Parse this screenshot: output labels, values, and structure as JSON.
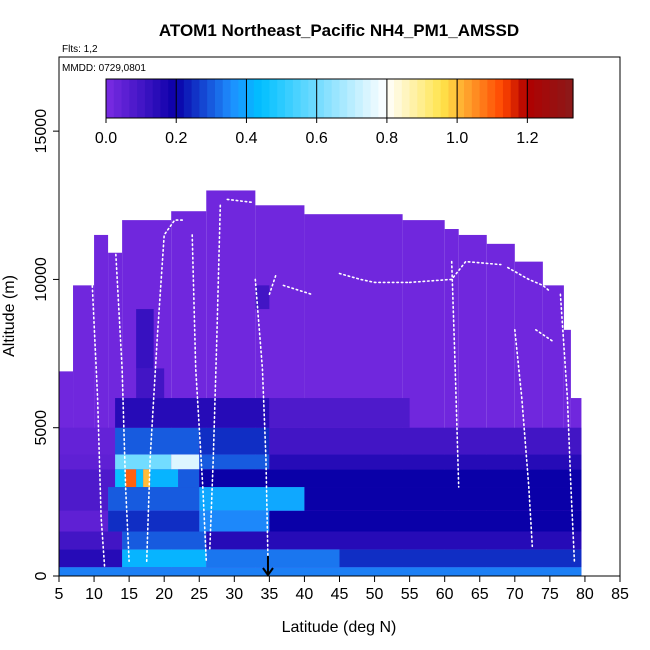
{
  "chart_data": {
    "type": "heatmap",
    "title": "ATOM1 Northeast_Pacific NH4_PM1_AMSSD",
    "flights_label": "Flts: 1,2",
    "date_label": "MMDD: 0729,0801",
    "xlabel": "Latitude (deg N)",
    "ylabel": "Altitude (m)",
    "xlim": [
      5,
      85
    ],
    "ylim": [
      0,
      17500
    ],
    "xticks": [
      "5",
      "10",
      "15",
      "20",
      "25",
      "30",
      "35",
      "40",
      "45",
      "50",
      "55",
      "60",
      "65",
      "70",
      "75",
      "80",
      "85"
    ],
    "yticks": [
      "0",
      "5000",
      "10000",
      "15000"
    ],
    "colorbar": {
      "range": [
        0,
        1.33
      ],
      "ticks": [
        "0.0",
        "0.2",
        "0.4",
        "0.6",
        "0.8",
        "1.0",
        "1.2"
      ],
      "colors": [
        "#7b2be3",
        "#0a00a8",
        "#1e90ff",
        "#00bfff",
        "#ffffff",
        "#ffe34a",
        "#ff4500",
        "#b00000",
        "#8b1a1a"
      ]
    },
    "arrow_marker": {
      "latitude": 34.8,
      "altitude": 0
    },
    "column_tops": [
      {
        "lat_from": 5,
        "lat_to": 7,
        "alt": 6900
      },
      {
        "lat_from": 7,
        "lat_to": 10,
        "alt": 9800
      },
      {
        "lat_from": 10,
        "lat_to": 12,
        "alt": 11500
      },
      {
        "lat_from": 12,
        "lat_to": 14,
        "alt": 10900
      },
      {
        "lat_from": 14,
        "lat_to": 21,
        "alt": 12000
      },
      {
        "lat_from": 21,
        "lat_to": 26,
        "alt": 12300
      },
      {
        "lat_from": 26,
        "lat_to": 33,
        "alt": 13000
      },
      {
        "lat_from": 33,
        "lat_to": 40,
        "alt": 12500
      },
      {
        "lat_from": 40,
        "lat_to": 54,
        "alt": 12200
      },
      {
        "lat_from": 54,
        "lat_to": 60,
        "alt": 12000
      },
      {
        "lat_from": 60,
        "lat_to": 62,
        "alt": 11700
      },
      {
        "lat_from": 62,
        "lat_to": 66,
        "alt": 11500
      },
      {
        "lat_from": 66,
        "lat_to": 70,
        "alt": 11200
      },
      {
        "lat_from": 70,
        "lat_to": 74,
        "alt": 10600
      },
      {
        "lat_from": 74,
        "lat_to": 77,
        "alt": 9800
      },
      {
        "lat_from": 77,
        "lat_to": 78,
        "alt": 8300
      },
      {
        "lat_from": 78,
        "lat_to": 79.5,
        "alt": 6000
      }
    ],
    "bands": [
      {
        "alt_from": 0,
        "alt_to": 300,
        "lat_from": 5,
        "lat_to": 79.5,
        "value": 0.34
      },
      {
        "alt_from": 300,
        "alt_to": 900,
        "lat_from": 5,
        "lat_to": 14,
        "value": 0.15
      },
      {
        "alt_from": 300,
        "alt_to": 900,
        "lat_from": 14,
        "lat_to": 26,
        "value": 0.42
      },
      {
        "alt_from": 300,
        "alt_to": 900,
        "lat_from": 26,
        "lat_to": 45,
        "value": 0.33
      },
      {
        "alt_from": 300,
        "alt_to": 900,
        "lat_from": 45,
        "lat_to": 79.5,
        "value": 0.25
      },
      {
        "alt_from": 900,
        "alt_to": 1500,
        "lat_from": 5,
        "lat_to": 14,
        "value": 0.1
      },
      {
        "alt_from": 900,
        "alt_to": 1500,
        "lat_from": 14,
        "lat_to": 26,
        "value": 0.3
      },
      {
        "alt_from": 900,
        "alt_to": 1500,
        "lat_from": 26,
        "lat_to": 79.5,
        "value": 0.15
      },
      {
        "alt_from": 1500,
        "alt_to": 2200,
        "lat_from": 5,
        "lat_to": 12,
        "value": 0.05
      },
      {
        "alt_from": 1500,
        "alt_to": 2200,
        "lat_from": 12,
        "lat_to": 25,
        "value": 0.25
      },
      {
        "alt_from": 1500,
        "alt_to": 2200,
        "lat_from": 25,
        "lat_to": 35,
        "value": 0.35
      },
      {
        "alt_from": 1500,
        "alt_to": 2200,
        "lat_from": 35,
        "lat_to": 79.5,
        "value": 0.2
      },
      {
        "alt_from": 2200,
        "alt_to": 3000,
        "lat_from": 5,
        "lat_to": 12,
        "value": 0.08
      },
      {
        "alt_from": 2200,
        "alt_to": 3000,
        "lat_from": 12,
        "lat_to": 25,
        "value": 0.3
      },
      {
        "alt_from": 2200,
        "alt_to": 3000,
        "lat_from": 25,
        "lat_to": 40,
        "value": 0.4
      },
      {
        "alt_from": 2200,
        "alt_to": 3000,
        "lat_from": 40,
        "lat_to": 79.5,
        "value": 0.2
      },
      {
        "alt_from": 3000,
        "alt_to": 3600,
        "lat_from": 5,
        "lat_to": 13,
        "value": 0.08
      },
      {
        "alt_from": 3000,
        "alt_to": 3600,
        "lat_from": 13,
        "lat_to": 14.5,
        "value": 0.45
      },
      {
        "alt_from": 3000,
        "alt_to": 3600,
        "lat_from": 14.5,
        "lat_to": 16,
        "value": 1.1
      },
      {
        "alt_from": 3000,
        "alt_to": 3600,
        "lat_from": 16,
        "lat_to": 17,
        "value": 0.45
      },
      {
        "alt_from": 3000,
        "alt_to": 3600,
        "lat_from": 17,
        "lat_to": 18,
        "value": 1.0
      },
      {
        "alt_from": 3000,
        "alt_to": 3600,
        "lat_from": 18,
        "lat_to": 22,
        "value": 0.42
      },
      {
        "alt_from": 3000,
        "alt_to": 3600,
        "lat_from": 22,
        "lat_to": 25,
        "value": 0.3
      },
      {
        "alt_from": 3000,
        "alt_to": 3600,
        "lat_from": 25,
        "lat_to": 79.5,
        "value": 0.2
      },
      {
        "alt_from": 3600,
        "alt_to": 4100,
        "lat_from": 5,
        "lat_to": 13,
        "value": 0.05
      },
      {
        "alt_from": 3600,
        "alt_to": 4100,
        "lat_from": 13,
        "lat_to": 21,
        "value": 0.6
      },
      {
        "alt_from": 3600,
        "alt_to": 4100,
        "lat_from": 21,
        "lat_to": 25,
        "value": 0.75
      },
      {
        "alt_from": 3600,
        "alt_to": 4100,
        "lat_from": 25,
        "lat_to": 35,
        "value": 0.3
      },
      {
        "alt_from": 3600,
        "alt_to": 4100,
        "lat_from": 35,
        "lat_to": 79.5,
        "value": 0.15
      },
      {
        "alt_from": 4100,
        "alt_to": 5000,
        "lat_from": 5,
        "lat_to": 13,
        "value": 0.04
      },
      {
        "alt_from": 4100,
        "alt_to": 5000,
        "lat_from": 13,
        "lat_to": 25,
        "value": 0.3
      },
      {
        "alt_from": 4100,
        "alt_to": 5000,
        "lat_from": 25,
        "lat_to": 35,
        "value": 0.25
      },
      {
        "alt_from": 4100,
        "alt_to": 5000,
        "lat_from": 35,
        "lat_to": 79.5,
        "value": 0.1
      },
      {
        "alt_from": 5000,
        "alt_to": 6000,
        "lat_from": 13,
        "lat_to": 35,
        "value": 0.15
      },
      {
        "alt_from": 5000,
        "alt_to": 6000,
        "lat_from": 35,
        "lat_to": 55,
        "value": 0.08
      },
      {
        "alt_from": 6000,
        "alt_to": 7000,
        "lat_from": 16,
        "lat_to": 20,
        "value": 0.1
      },
      {
        "alt_from": 7000,
        "alt_to": 9000,
        "lat_from": 16,
        "lat_to": 18.5,
        "value": 0.12
      },
      {
        "alt_from": 9000,
        "alt_to": 9800,
        "lat_from": 33,
        "lat_to": 35,
        "value": 0.1
      }
    ],
    "background_value": 0.02,
    "flight_track_segments": [
      [
        [
          9.5,
          11000
        ],
        [
          10.5,
          6000
        ],
        [
          11,
          2000
        ],
        [
          11.5,
          300
        ]
      ],
      [
        [
          13,
          11300
        ],
        [
          14,
          7000
        ],
        [
          14.5,
          3000
        ],
        [
          15,
          500
        ]
      ],
      [
        [
          17.5,
          500
        ],
        [
          18,
          4000
        ],
        [
          19,
          8000
        ],
        [
          20,
          11500
        ],
        [
          21.5,
          12000
        ],
        [
          23,
          12000
        ]
      ],
      [
        [
          24,
          11500
        ],
        [
          24.5,
          7000
        ],
        [
          25.5,
          3000
        ],
        [
          26,
          500
        ]
      ],
      [
        [
          28,
          12500
        ],
        [
          27.5,
          8000
        ],
        [
          27,
          4000
        ],
        [
          26.5,
          900
        ]
      ],
      [
        [
          29,
          12700
        ],
        [
          32.5,
          12600
        ]
      ],
      [
        [
          33,
          10000
        ],
        [
          34,
          7000
        ],
        [
          34.5,
          4000
        ],
        [
          34.8,
          500
        ]
      ],
      [
        [
          35,
          9500
        ],
        [
          36,
          10200
        ]
      ],
      [
        [
          37,
          9800
        ],
        [
          41,
          9500
        ]
      ],
      [
        [
          45,
          10200
        ],
        [
          48,
          10000
        ],
        [
          50,
          9900
        ],
        [
          55,
          9900
        ]
      ],
      [
        [
          55,
          9900
        ],
        [
          61,
          10000
        ],
        [
          63,
          10600
        ],
        [
          68,
          10500
        ]
      ],
      [
        [
          61,
          10600
        ],
        [
          61.5,
          7000
        ],
        [
          62,
          3000
        ]
      ],
      [
        [
          69,
          10400
        ],
        [
          72,
          10000
        ],
        [
          74,
          9800
        ],
        [
          75,
          9600
        ]
      ],
      [
        [
          70,
          8300
        ],
        [
          71,
          6000
        ],
        [
          72,
          3000
        ],
        [
          72.5,
          1000
        ]
      ],
      [
        [
          73,
          8300
        ],
        [
          75.5,
          7900
        ]
      ],
      [
        [
          76.5,
          9500
        ],
        [
          77.5,
          6000
        ],
        [
          78,
          3000
        ],
        [
          78.5,
          500
        ]
      ]
    ]
  }
}
